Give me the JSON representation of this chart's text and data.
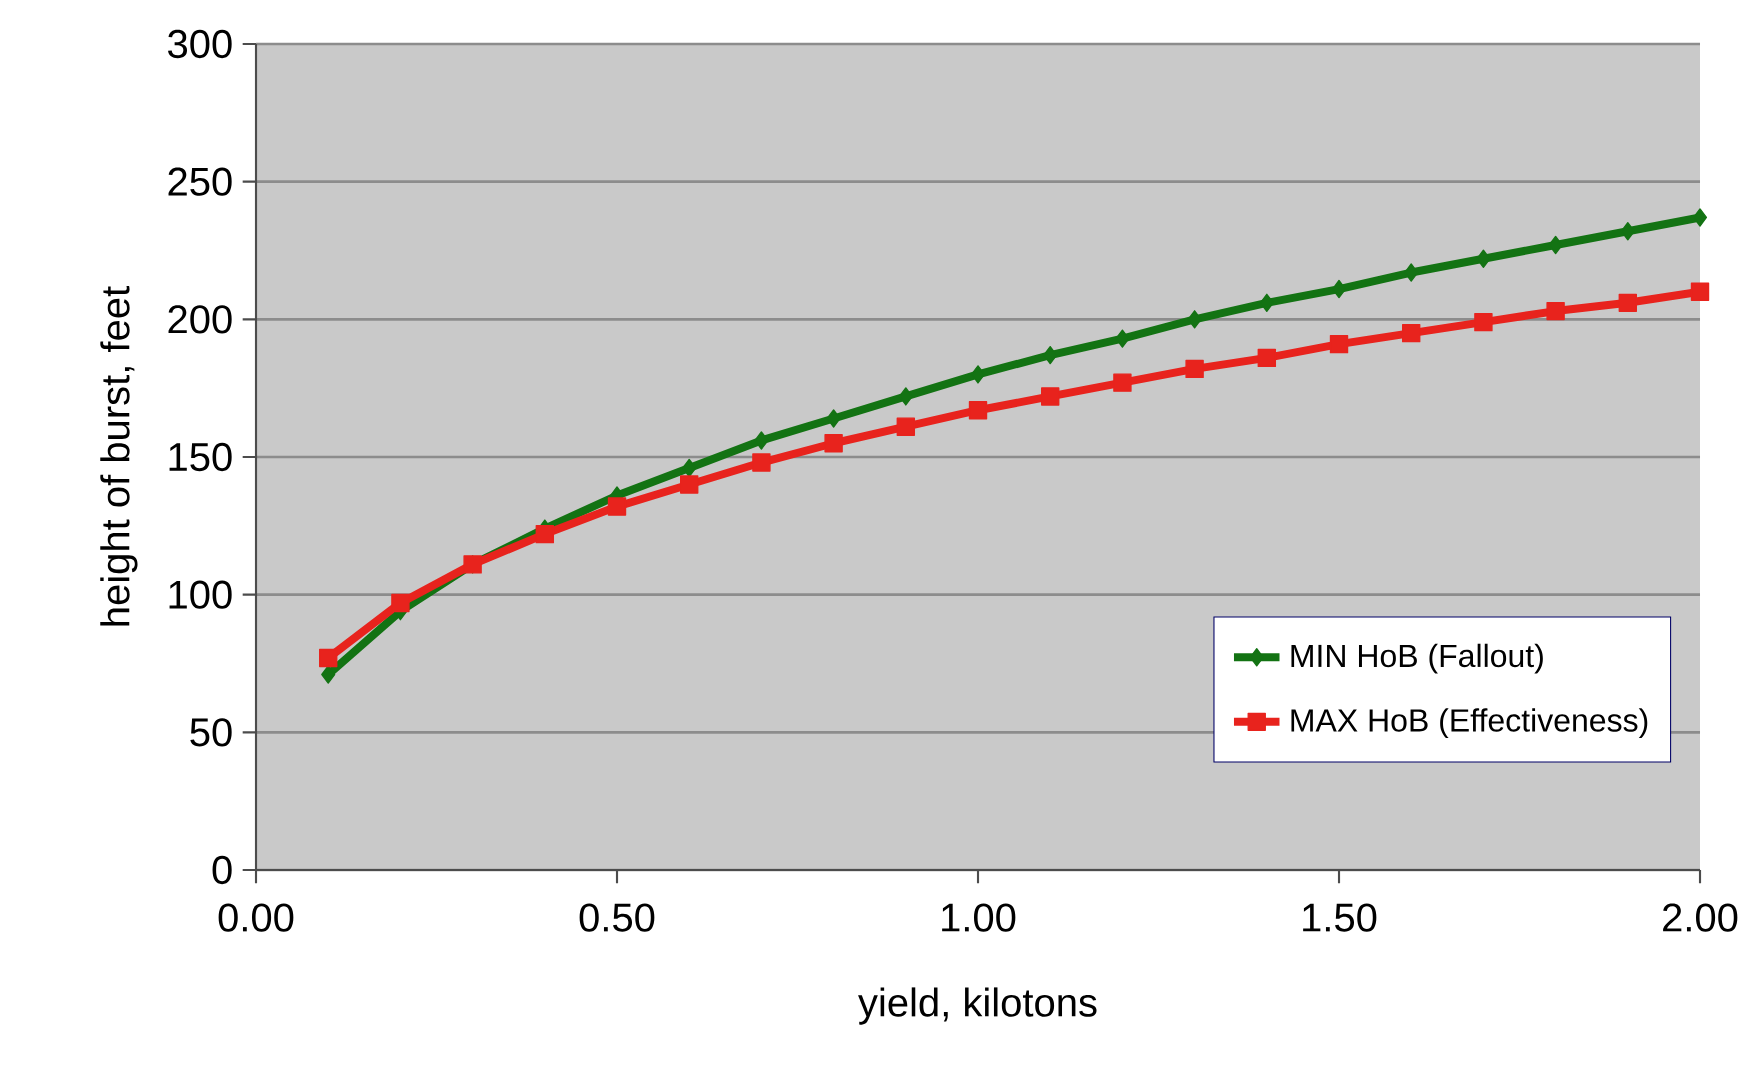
{
  "chart_data": {
    "type": "line",
    "xlabel": "yield, kilotons",
    "ylabel": "height of burst, feet",
    "xlim": [
      0,
      2
    ],
    "xticks": [
      {
        "value": 0,
        "label": "0.00"
      },
      {
        "value": 0.5,
        "label": "0.50"
      },
      {
        "value": 1,
        "label": "1.00"
      },
      {
        "value": 1.5,
        "label": "1.50"
      },
      {
        "value": 2,
        "label": "2.00"
      }
    ],
    "ylim": [
      0,
      300
    ],
    "yticks": [
      0,
      50,
      100,
      150,
      200,
      250,
      300
    ],
    "grid": "y",
    "legend": "bottom right",
    "x": [
      0.1,
      0.2,
      0.3,
      0.4,
      0.5,
      0.6,
      0.7,
      0.8,
      0.9,
      1.0,
      1.1,
      1.2,
      1.3,
      1.4,
      1.5,
      1.6,
      1.7,
      1.8,
      1.9,
      2.0
    ],
    "series": [
      {
        "name": "MIN HoB (Fallout)",
        "color": "#137313",
        "marker": "diamond",
        "values": [
          71,
          94,
          111,
          124,
          136,
          146,
          156,
          164,
          172,
          180,
          187,
          193,
          200,
          206,
          211,
          217,
          222,
          227,
          232,
          237
        ]
      },
      {
        "name": "MAX HoB (Effectiveness)",
        "color": "#e8231d",
        "marker": "square",
        "values": [
          77,
          97,
          111,
          122,
          132,
          140,
          148,
          155,
          161,
          167,
          172,
          177,
          182,
          186,
          191,
          195,
          199,
          203,
          206,
          210
        ]
      }
    ]
  }
}
